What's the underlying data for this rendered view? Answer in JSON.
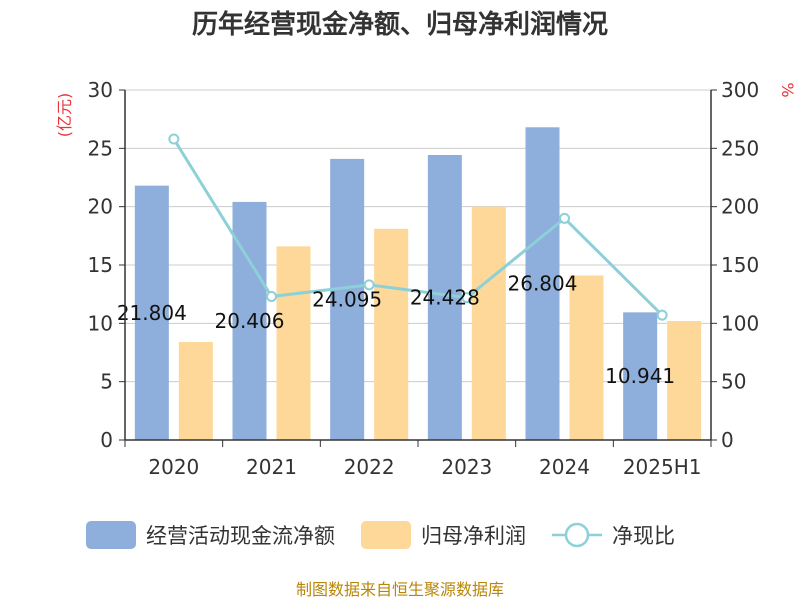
{
  "chart_data": {
    "type": "bar",
    "title": "历年经营现金净额、归母净利润情况",
    "categories": [
      "2020",
      "2021",
      "2022",
      "2023",
      "2024",
      "2025H1"
    ],
    "series": [
      {
        "name": "经营活动现金流净额",
        "type": "bar",
        "axis": "left",
        "values": [
          21.804,
          20.406,
          24.095,
          24.428,
          26.804,
          10.941
        ],
        "labels": [
          "21.804",
          "20.406",
          "24.095",
          "24.428",
          "26.804",
          "10.941"
        ],
        "color": "#8eaedb"
      },
      {
        "name": "归母净利润",
        "type": "bar",
        "axis": "left",
        "values": [
          8.4,
          16.6,
          18.1,
          20.0,
          14.1,
          10.2
        ],
        "color": "#fdd898"
      },
      {
        "name": "净现比",
        "type": "line",
        "axis": "right",
        "values": [
          258,
          123,
          133,
          122,
          190,
          107
        ],
        "color": "#8cd0d8"
      }
    ],
    "y_left": {
      "unit": "(亿元)",
      "ylim": [
        0,
        30
      ],
      "ticks": [
        "0",
        "5",
        "10",
        "15",
        "20",
        "25",
        "30"
      ]
    },
    "y_right": {
      "unit": "%",
      "ylim": [
        0,
        300
      ],
      "ticks": [
        "0",
        "50",
        "100",
        "150",
        "200",
        "250",
        "300"
      ]
    },
    "grid": true,
    "legend_position": "bottom"
  },
  "source": "制图数据来自恒生聚源数据库"
}
